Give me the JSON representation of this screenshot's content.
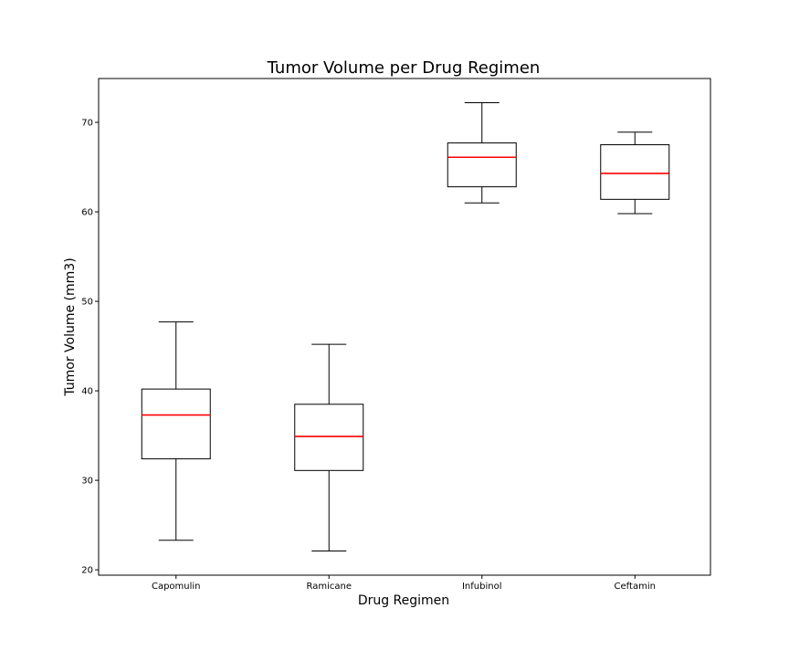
{
  "chart_data": {
    "type": "box",
    "title": "Tumor Volume per Drug Regimen",
    "xlabel": "Drug Regimen",
    "ylabel": "Tumor Volume (mm3)",
    "ylim": [
      19.4,
      74.9
    ],
    "yticks": [
      20,
      30,
      40,
      50,
      60,
      70
    ],
    "ytick_labels": [
      "20",
      "30",
      "40",
      "50",
      "60",
      "70"
    ],
    "categories": [
      "Capomulin",
      "Ramicane",
      "Infubinol",
      "Ceftamin"
    ],
    "boxes": [
      {
        "name": "Capomulin",
        "whisker_low": 23.3,
        "q1": 32.4,
        "median": 37.3,
        "q3": 40.2,
        "whisker_high": 47.7
      },
      {
        "name": "Ramicane",
        "whisker_low": 22.1,
        "q1": 31.1,
        "median": 34.9,
        "q3": 38.5,
        "whisker_high": 45.2
      },
      {
        "name": "Infubinol",
        "whisker_low": 61.0,
        "q1": 62.8,
        "median": 66.1,
        "q3": 67.7,
        "whisker_high": 72.2
      },
      {
        "name": "Ceftamin",
        "whisker_low": 59.8,
        "q1": 61.4,
        "median": 64.3,
        "q3": 67.5,
        "whisker_high": 68.9
      }
    ],
    "grid": false,
    "colors": {
      "box": "#000000",
      "median": "#ff0000",
      "frame": "#000000",
      "background": "#ffffff"
    }
  }
}
